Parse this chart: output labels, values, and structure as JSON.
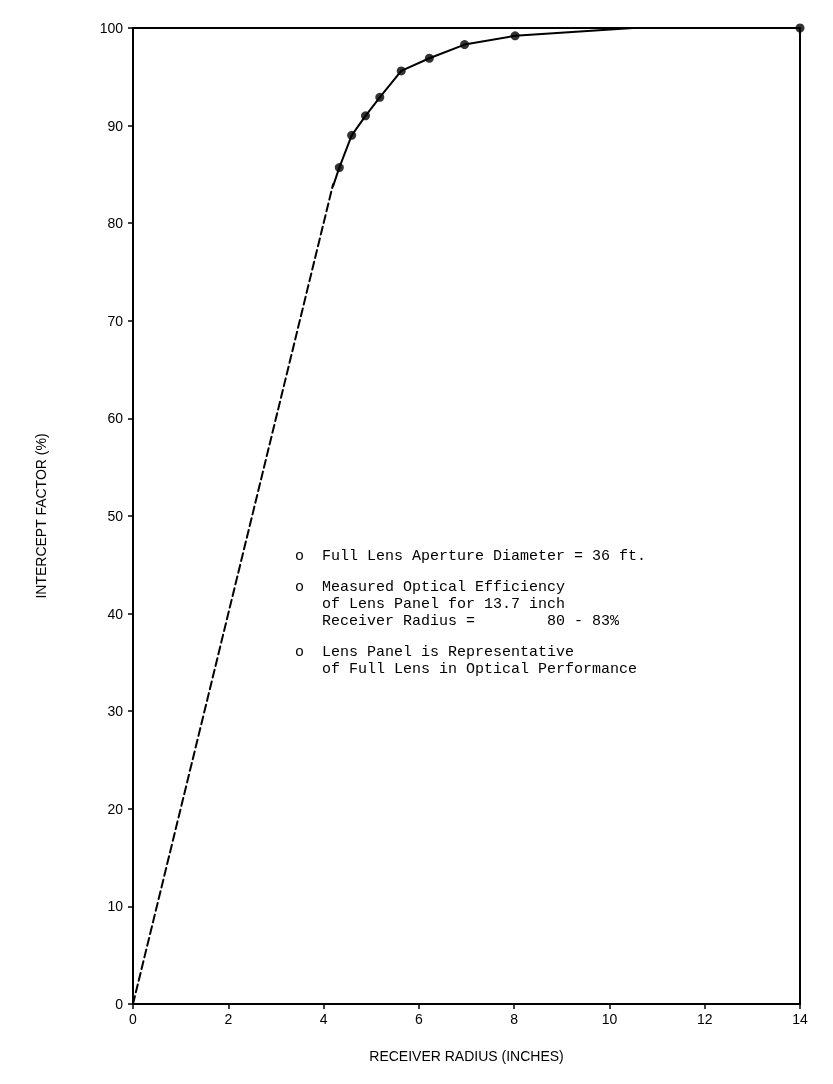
{
  "chart_data": {
    "type": "line",
    "xlabel": "RECEIVER RADIUS (INCHES)",
    "ylabel": "INTERCEPT FACTOR (%)",
    "xlim": [
      0,
      14
    ],
    "xticks": [
      0,
      2,
      4,
      6,
      8,
      10,
      12,
      14
    ],
    "ylim": [
      0,
      100
    ],
    "yticks": [
      0,
      10,
      20,
      30,
      40,
      50,
      60,
      70,
      80,
      90,
      100
    ],
    "grid": false,
    "series": [
      {
        "color": "#000000",
        "line_style": "dashed",
        "marker": "none",
        "x": [
          0,
          4.2
        ],
        "values": [
          0,
          84
        ]
      },
      {
        "color": "#000000",
        "line_style": "solid",
        "marker": "none",
        "x": [
          4.2,
          4.33,
          4.59,
          4.88,
          5.18,
          5.63,
          6.22,
          6.96,
          8.02,
          10.5,
          14
        ],
        "values": [
          83.8,
          85.7,
          89.0,
          91.0,
          92.9,
          95.6,
          96.9,
          98.3,
          99.2,
          100,
          100
        ]
      },
      {
        "type": "scatter",
        "color": "#000000",
        "marker": "circle",
        "x": [
          4.33,
          4.59,
          4.88,
          5.18,
          5.63,
          6.22,
          6.96,
          8.02,
          14
        ],
        "values": [
          85.7,
          89.0,
          91.0,
          92.9,
          95.6,
          96.9,
          98.3,
          99.2,
          100
        ]
      }
    ],
    "annotations": [
      "o  Full Lens Aperture Diameter = 36 ft.",
      "o  Measured Optical Efficiency\n   of Lens Panel for 13.7 inch\n   Receiver Radius =        80 - 83%",
      "o  Lens Panel is Representative\n   of Full Lens in Optical Performance"
    ]
  }
}
